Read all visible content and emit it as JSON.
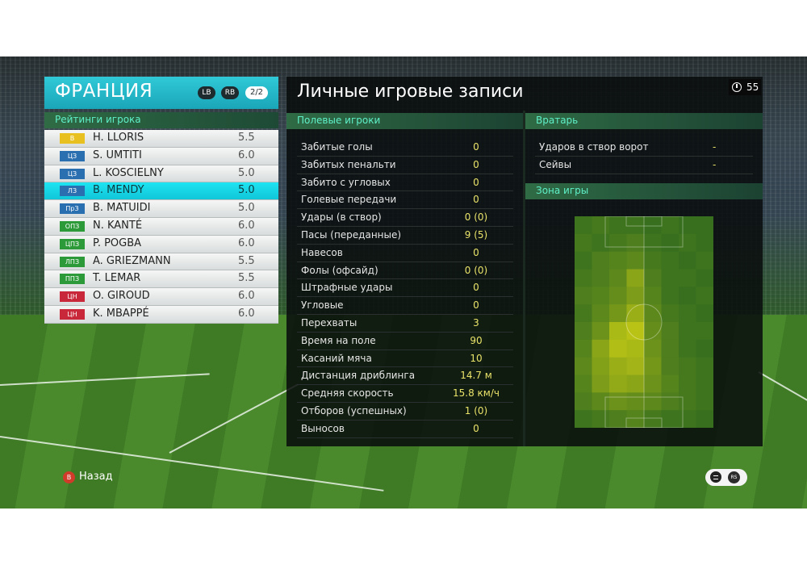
{
  "team": {
    "name": "ФРАНЦИЯ",
    "lb_label": "LB",
    "rb_label": "RB",
    "page_indicator": "2/2"
  },
  "ratings_header": "Рейтинги игрока",
  "players": [
    {
      "position": "В",
      "pos_color": "#e8c020",
      "name": "H. LLORIS",
      "rating": "5.5",
      "selected": false
    },
    {
      "position": "ЦЗ",
      "pos_color": "#2a6fb0",
      "name": "S. UMTITI",
      "rating": "6.0",
      "selected": false
    },
    {
      "position": "ЦЗ",
      "pos_color": "#2a6fb0",
      "name": "L. KOSCIELNY",
      "rating": "5.0",
      "selected": false
    },
    {
      "position": "ЛЗ",
      "pos_color": "#2a6fb0",
      "name": "B. MENDY",
      "rating": "5.0",
      "selected": true
    },
    {
      "position": "ПрЗ",
      "pos_color": "#2a6fb0",
      "name": "B. MATUIDI",
      "rating": "5.0",
      "selected": false
    },
    {
      "position": "ОПЗ",
      "pos_color": "#2d9a3a",
      "name": "N. KANTÉ",
      "rating": "6.0",
      "selected": false
    },
    {
      "position": "ЦПЗ",
      "pos_color": "#2d9a3a",
      "name": "P. POGBA",
      "rating": "6.0",
      "selected": false
    },
    {
      "position": "ЛПЗ",
      "pos_color": "#2d9a3a",
      "name": "A. GRIEZMANN",
      "rating": "5.5",
      "selected": false
    },
    {
      "position": "ППЗ",
      "pos_color": "#2d9a3a",
      "name": "T. LEMAR",
      "rating": "5.5",
      "selected": false
    },
    {
      "position": "ЦН",
      "pos_color": "#c8283a",
      "name": "O. GIROUD",
      "rating": "6.0",
      "selected": false
    },
    {
      "position": "ЦН",
      "pos_color": "#c8283a",
      "name": "K. MBAPPÉ",
      "rating": "6.0",
      "selected": false
    }
  ],
  "main": {
    "title": "Личные игровые записи",
    "timer": "55",
    "field_header": "Полевые игроки",
    "gk_header": "Вратарь",
    "zone_header": "Зона игры"
  },
  "field_stats": [
    {
      "label": "Забитые голы",
      "value": "0"
    },
    {
      "label": "Забитых пенальти",
      "value": "0"
    },
    {
      "label": "Забито с угловых",
      "value": "0"
    },
    {
      "label": "Голевые передачи",
      "value": "0"
    },
    {
      "label": "Удары (в створ)",
      "value": "0 (0)"
    },
    {
      "label": "Пасы (переданные)",
      "value": "9 (5)"
    },
    {
      "label": "Навесов",
      "value": "0"
    },
    {
      "label": "Фолы (офсайд)",
      "value": "0 (0)"
    },
    {
      "label": "Штрафные удары",
      "value": "0"
    },
    {
      "label": "Угловые",
      "value": "0"
    },
    {
      "label": "Перехваты",
      "value": "3"
    },
    {
      "label": "Время на поле",
      "value": "90"
    },
    {
      "label": "Касаний мяча",
      "value": "10"
    },
    {
      "label": "Дистанция дриблинга",
      "value": "14.7 м"
    },
    {
      "label": "Средняя скорость",
      "value": "15.8 км/ч"
    },
    {
      "label": "Отборов (успешных)",
      "value": "1 (0)"
    },
    {
      "label": "Выносов",
      "value": "0"
    }
  ],
  "gk_stats": [
    {
      "label": "Ударов в створ ворот",
      "value": "-"
    },
    {
      "label": "Сейвы",
      "value": "-"
    }
  ],
  "heatmap": {
    "cols": 8,
    "rows": 12,
    "intensity": [
      [
        0.1,
        0.15,
        0.1,
        0.1,
        0.05,
        0.1,
        0.05,
        0.05
      ],
      [
        0.15,
        0.1,
        0.15,
        0.2,
        0.1,
        0.05,
        0.1,
        0.05
      ],
      [
        0.1,
        0.2,
        0.25,
        0.3,
        0.15,
        0.1,
        0.05,
        0.1
      ],
      [
        0.15,
        0.2,
        0.3,
        0.6,
        0.2,
        0.1,
        0.1,
        0.05
      ],
      [
        0.2,
        0.25,
        0.35,
        0.5,
        0.25,
        0.1,
        0.05,
        0.1
      ],
      [
        0.15,
        0.3,
        0.45,
        0.7,
        0.3,
        0.15,
        0.1,
        0.05
      ],
      [
        0.2,
        0.4,
        0.8,
        0.9,
        0.35,
        0.2,
        0.1,
        0.1
      ],
      [
        0.25,
        0.6,
        0.85,
        0.8,
        0.4,
        0.2,
        0.1,
        0.05
      ],
      [
        0.3,
        0.55,
        0.7,
        0.75,
        0.45,
        0.2,
        0.15,
        0.1
      ],
      [
        0.25,
        0.5,
        0.65,
        0.6,
        0.4,
        0.25,
        0.15,
        0.1
      ],
      [
        0.2,
        0.3,
        0.4,
        0.35,
        0.3,
        0.2,
        0.15,
        0.1
      ],
      [
        0.1,
        0.15,
        0.2,
        0.25,
        0.15,
        0.1,
        0.1,
        0.05
      ]
    ]
  },
  "footer": {
    "back_button": "B",
    "back_label": "Назад",
    "rs_label": "RS"
  }
}
